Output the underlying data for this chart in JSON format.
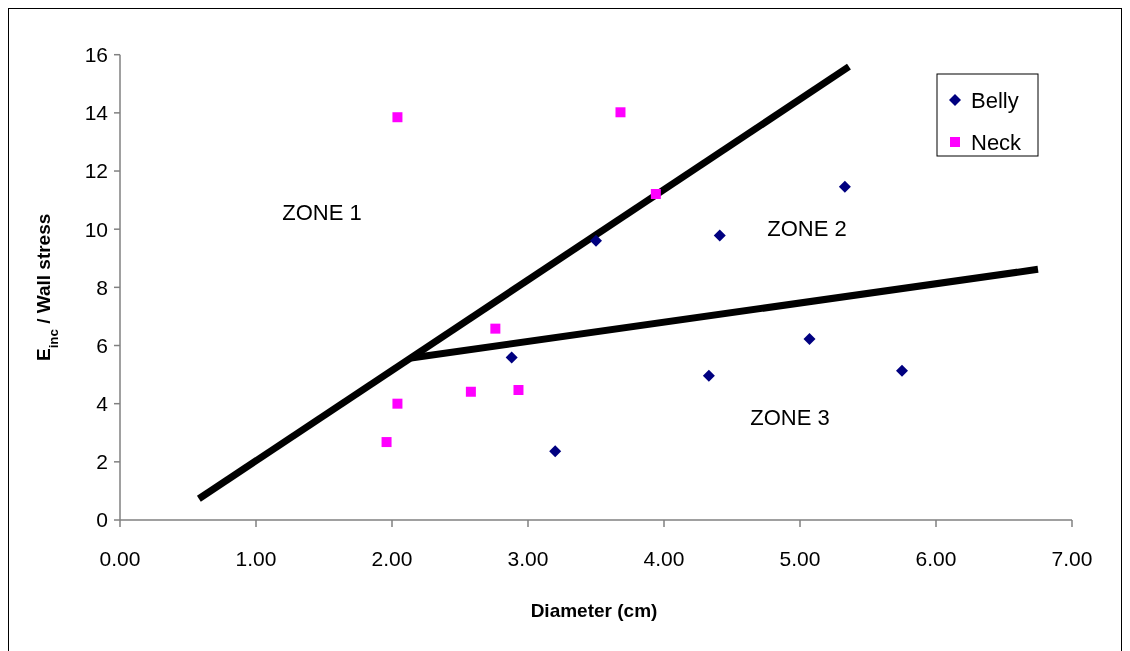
{
  "chart_data": {
    "type": "scatter",
    "xlabel": "Diameter (cm)",
    "ylabel": "E$_{inc}$ / Wall stress",
    "xlim": [
      0,
      7
    ],
    "ylim": [
      0,
      16
    ],
    "xticks": [
      {
        "value": 0,
        "label": "0.00"
      },
      {
        "value": 1,
        "label": "1.00"
      },
      {
        "value": 2,
        "label": "2.00"
      },
      {
        "value": 3,
        "label": "3.00"
      },
      {
        "value": 4,
        "label": "4.00"
      },
      {
        "value": 5,
        "label": "5.00"
      },
      {
        "value": 6,
        "label": "6.00"
      },
      {
        "value": 7,
        "label": "7.00"
      }
    ],
    "yticks": [
      0,
      2,
      4,
      6,
      8,
      10,
      12,
      14,
      16
    ],
    "grid": false,
    "legend": "top right",
    "series": [
      {
        "name": "Belly",
        "color": "#000080",
        "marker": "diamond",
        "x": [
          2.88,
          3.2,
          3.5,
          4.41,
          5.33,
          5.07,
          4.33,
          5.75
        ],
        "values": [
          5.59,
          2.36,
          9.6,
          9.78,
          11.46,
          6.22,
          4.96,
          5.13
        ]
      },
      {
        "name": "Neck",
        "color": "#ff00ff",
        "marker": "square",
        "x": [
          2.04,
          2.76,
          2.04,
          1.96,
          2.58,
          2.93,
          3.68,
          3.94
        ],
        "values": [
          13.85,
          6.58,
          4.0,
          2.68,
          4.41,
          4.47,
          14.02,
          11.21
        ]
      },
      {
        "type": "line",
        "color": "#000000",
        "marker": "none",
        "line_style": "solid",
        "x": [
          0.58,
          5.36
        ],
        "values": [
          0.73,
          15.59
        ]
      },
      {
        "type": "line",
        "color": "#000000",
        "marker": "none",
        "line_style": "solid",
        "x": [
          2.14,
          6.75
        ],
        "values": [
          5.57,
          8.62
        ]
      }
    ],
    "annotations": [
      "ZONE 1",
      "ZONE 2",
      "ZONE 3"
    ]
  }
}
